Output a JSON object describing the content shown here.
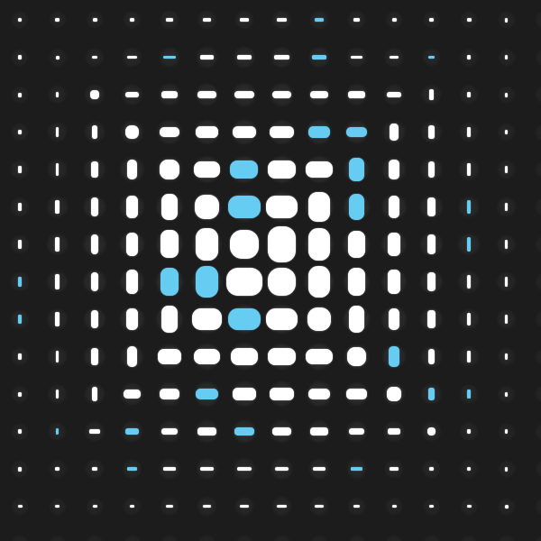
{
  "colors": {
    "background": "#1c1c1c",
    "dot": "#ffffff",
    "accent": "#66ccf2"
  },
  "grid": {
    "rows": 14,
    "cols": 14,
    "accent_cells": [
      [
        0,
        8
      ],
      [
        1,
        4
      ],
      [
        1,
        8
      ],
      [
        1,
        11
      ],
      [
        3,
        8
      ],
      [
        3,
        9
      ],
      [
        4,
        6
      ],
      [
        4,
        9
      ],
      [
        5,
        6
      ],
      [
        5,
        9
      ],
      [
        5,
        12
      ],
      [
        6,
        12
      ],
      [
        7,
        0
      ],
      [
        7,
        4
      ],
      [
        7,
        5
      ],
      [
        8,
        0
      ],
      [
        8,
        6
      ],
      [
        9,
        10
      ],
      [
        10,
        5
      ],
      [
        10,
        11
      ],
      [
        10,
        12
      ],
      [
        11,
        1
      ],
      [
        11,
        3
      ],
      [
        11,
        6
      ],
      [
        12,
        3
      ],
      [
        12,
        9
      ]
    ]
  }
}
